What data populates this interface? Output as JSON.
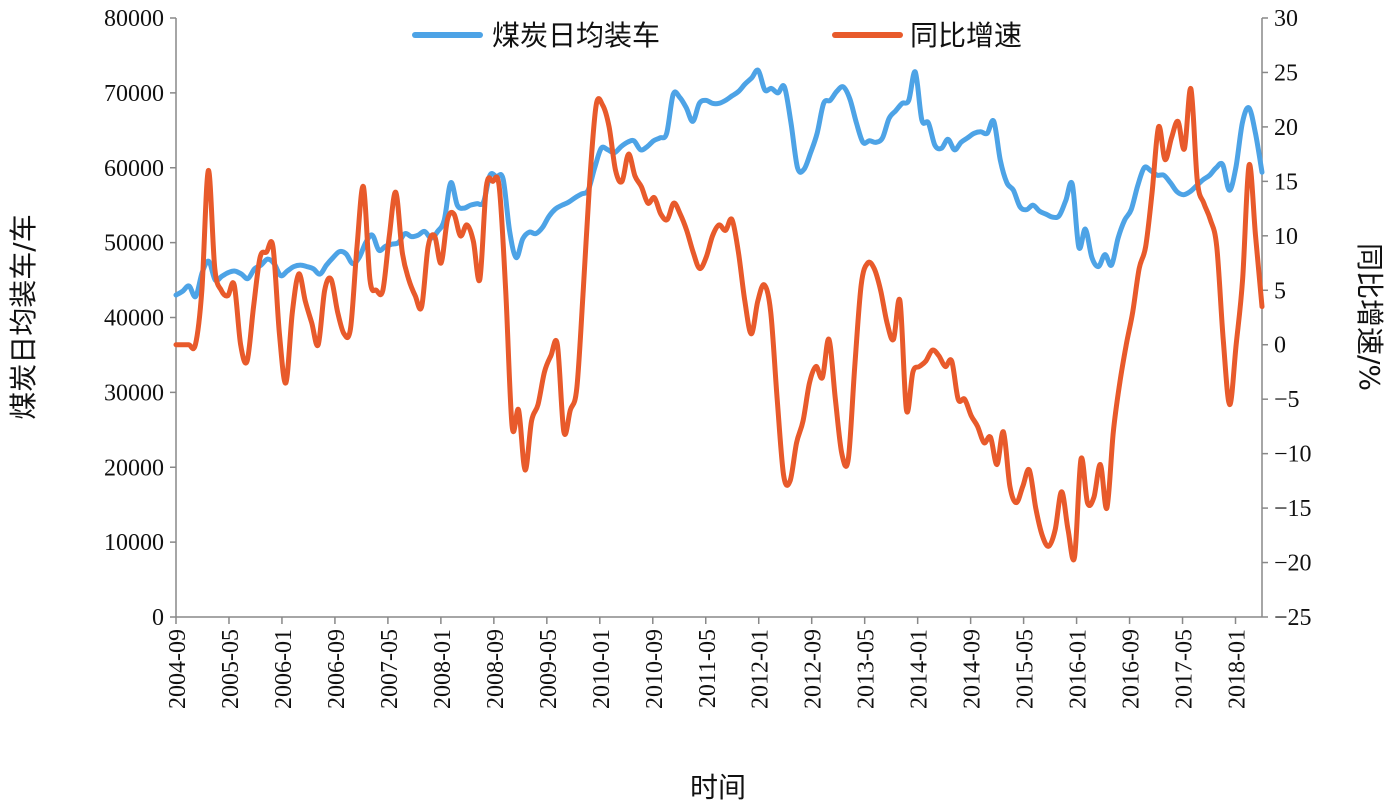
{
  "chart_data": {
    "type": "line",
    "title": "",
    "xlabel": "时间",
    "ylabel_left": "煤炭日均装车/车",
    "ylabel_right": "同比增速/%",
    "ylim_left": [
      0,
      80000
    ],
    "ylim_right": [
      -25,
      30
    ],
    "yticks_left": [
      "0",
      "10000",
      "20000",
      "30000",
      "40000",
      "50000",
      "60000",
      "70000",
      "80000"
    ],
    "yticks_right": [
      "−25",
      "−20",
      "−15",
      "−10",
      "−5",
      "0",
      "5",
      "10",
      "15",
      "20",
      "25",
      "30"
    ],
    "xticks": [
      "2004-09",
      "2005-05",
      "2006-01",
      "2006-09",
      "2007-05",
      "2008-01",
      "2008-09",
      "2009-05",
      "2010-01",
      "2010-09",
      "2011-05",
      "2012-01",
      "2012-09",
      "2013-05",
      "2014-01",
      "2014-09",
      "2015-05",
      "2016-01",
      "2016-09",
      "2017-05",
      "2018-01"
    ],
    "x_start": "2004-09",
    "x_end": "2018-05",
    "grid": false,
    "legend_position": "top",
    "series": [
      {
        "name": "煤炭日均装车",
        "axis": "left",
        "color": "#4DA3E6",
        "values": [
          43000,
          43500,
          44200,
          42800,
          46000,
          47500,
          45000,
          45500,
          46000,
          46200,
          45800,
          45200,
          46500,
          47000,
          47800,
          47200,
          45600,
          46200,
          46800,
          47000,
          46800,
          46500,
          45800,
          47000,
          48000,
          48800,
          48500,
          47200,
          48000,
          50000,
          51000,
          49000,
          49500,
          49800,
          50000,
          51200,
          50800,
          51000,
          51500,
          50600,
          51500,
          53000,
          58000,
          55000,
          54600,
          55000,
          55200,
          55400,
          59000,
          58800,
          58500,
          51500,
          48000,
          50500,
          51400,
          51200,
          52000,
          53500,
          54500,
          55000,
          55400,
          56000,
          56500,
          57000,
          60000,
          62600,
          62400,
          62000,
          62800,
          63400,
          63600,
          62400,
          62800,
          63600,
          64000,
          64600,
          69800,
          69400,
          68000,
          66200,
          68600,
          69000,
          68600,
          68600,
          69000,
          69600,
          70200,
          71200,
          72000,
          73000,
          70400,
          70600,
          70000,
          70800,
          66000,
          60000,
          59800,
          62000,
          64600,
          68600,
          69000,
          70200,
          70800,
          69200,
          66000,
          63400,
          63600,
          63400,
          64000,
          66600,
          67600,
          68600,
          69000,
          72800,
          66400,
          66000,
          63000,
          62600,
          63800,
          62400,
          63400,
          64000,
          64600,
          64800,
          64600,
          66200,
          61000,
          58000,
          57000,
          54800,
          54400,
          55000,
          54200,
          53800,
          53400,
          53600,
          55600,
          57800,
          49400,
          51800,
          48000,
          46800,
          48400,
          47000,
          50600,
          53000,
          54400,
          57600,
          60000,
          59600,
          59000,
          59000,
          58000,
          56800,
          56400,
          56800,
          57600,
          58400,
          59000,
          60000,
          60400,
          57000,
          60000,
          66000,
          68000,
          64600,
          59400
        ]
      },
      {
        "name": "同比增速",
        "axis": "right",
        "color": "#E85A2B",
        "values": [
          0.0,
          0.0,
          0.0,
          0.0,
          5.0,
          16.0,
          7.0,
          5.0,
          4.5,
          5.5,
          0.0,
          -1.5,
          3.5,
          8.0,
          8.5,
          9.0,
          1.0,
          -3.5,
          3.0,
          6.5,
          4.0,
          2.0,
          0.0,
          5.0,
          6.0,
          3.0,
          1.0,
          1.5,
          9.0,
          14.5,
          6.0,
          5.0,
          5.0,
          10.0,
          14.0,
          8.5,
          6.0,
          4.5,
          3.5,
          9.0,
          10.0,
          7.5,
          11.5,
          12.0,
          10.0,
          11.0,
          9.5,
          6.0,
          14.5,
          15.0,
          14.5,
          5.0,
          -7.5,
          -6.0,
          -11.5,
          -7.0,
          -5.5,
          -2.5,
          -1.0,
          0.0,
          -8.0,
          -6.0,
          -4.0,
          5.0,
          15.0,
          22.0,
          22.0,
          20.0,
          16.0,
          15.0,
          17.5,
          15.5,
          14.5,
          13.0,
          13.5,
          12.0,
          11.5,
          13.0,
          12.0,
          10.5,
          8.5,
          7.0,
          8.0,
          10.0,
          11.0,
          10.5,
          11.5,
          8.5,
          4.0,
          1.0,
          4.0,
          5.5,
          3.0,
          -5.0,
          -12.0,
          -12.5,
          -9.0,
          -7.0,
          -3.5,
          -2.0,
          -3.0,
          0.5,
          -5.0,
          -10.0,
          -10.5,
          -2.0,
          5.5,
          7.5,
          7.0,
          5.0,
          2.0,
          0.5,
          4.0,
          -6.0,
          -2.5,
          -2.0,
          -1.5,
          -0.5,
          -1.0,
          -2.0,
          -1.5,
          -5.0,
          -5.0,
          -6.5,
          -7.5,
          -9.0,
          -8.5,
          -11.0,
          -8.0,
          -13.0,
          -14.5,
          -13.0,
          -11.5,
          -15.0,
          -17.5,
          -18.5,
          -17.0,
          -13.5,
          -17.0,
          -19.5,
          -10.5,
          -14.5,
          -14.0,
          -11.0,
          -15.0,
          -8.0,
          -3.5,
          0.0,
          3.0,
          7.0,
          9.0,
          14.0,
          20.0,
          17.0,
          19.0,
          20.5,
          18.0,
          23.5,
          15.0,
          13.0,
          11.5,
          9.0,
          0.5,
          -5.5,
          0.0,
          6.0,
          16.5,
          10.0,
          3.5
        ]
      }
    ]
  }
}
